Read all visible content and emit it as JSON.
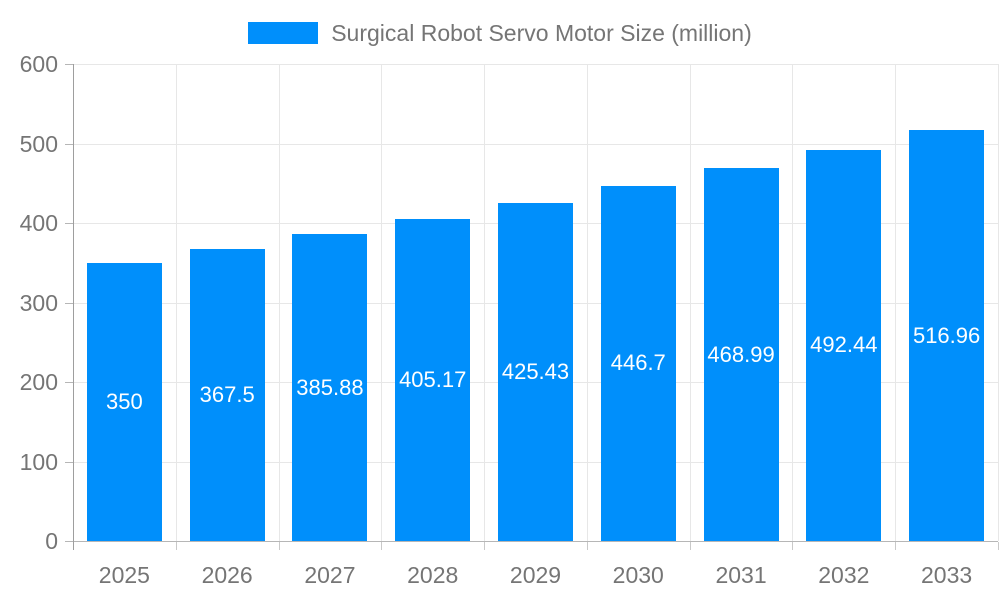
{
  "legend": {
    "label": "Surgical Robot Servo Motor Size (million)"
  },
  "chart_data": {
    "type": "bar",
    "title": "Surgical Robot Servo Motor Size (million)",
    "categories": [
      "2025",
      "2026",
      "2027",
      "2028",
      "2029",
      "2030",
      "2031",
      "2032",
      "2033"
    ],
    "values": [
      350,
      367.5,
      385.88,
      405.17,
      425.43,
      446.7,
      468.99,
      492.44,
      516.96
    ],
    "data_labels": [
      "350",
      "367.5",
      "385.88",
      "405.17",
      "425.43",
      "446.7",
      "468.99",
      "492.44",
      "516.96"
    ],
    "xlabel": "",
    "ylabel": "",
    "ylim": [
      0,
      600
    ],
    "yticks": [
      0,
      100,
      200,
      300,
      400,
      500,
      600
    ],
    "grid": true,
    "legend_position": "top",
    "colors": {
      "bar": "#008FFB",
      "bar_label": "#ffffff",
      "axis_text": "#757575",
      "grid_line": "#e7e7e7",
      "x_axis_line": "#b6b6b6",
      "y_axis_line": "#9e9e9e",
      "tick": "#c9c9c9"
    }
  }
}
